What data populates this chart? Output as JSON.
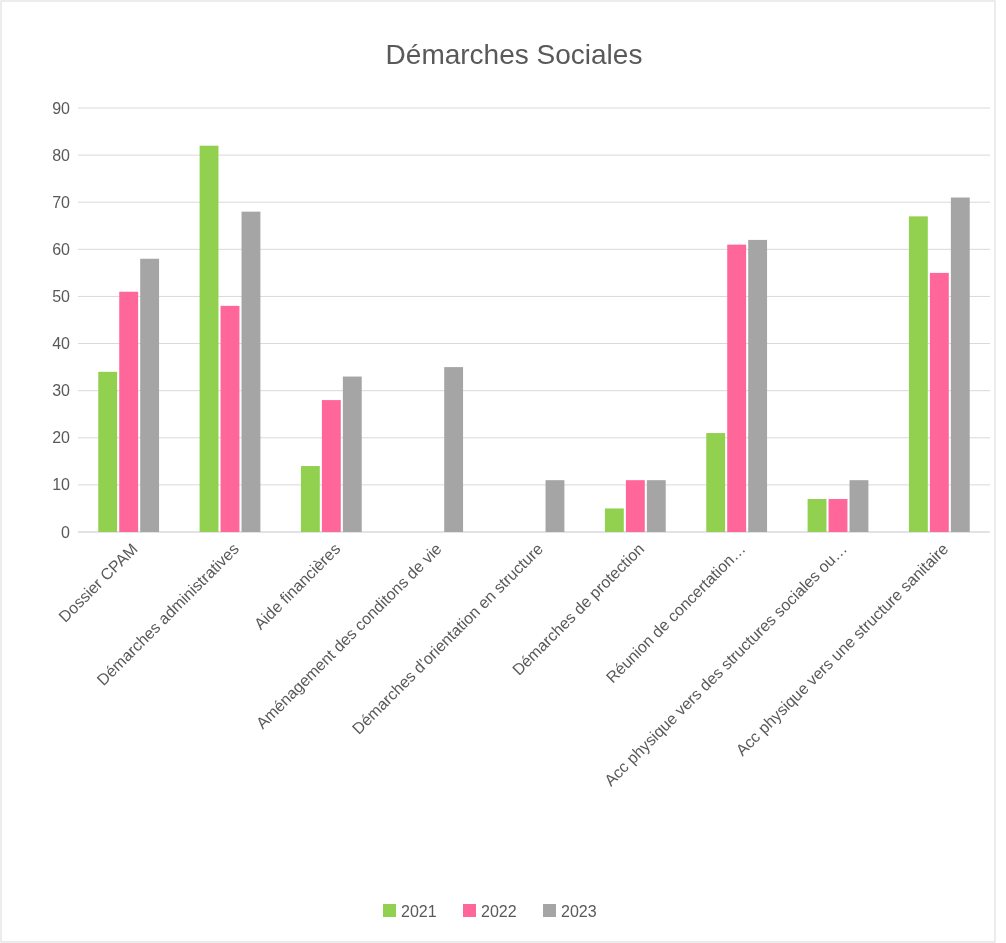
{
  "chart_data": {
    "type": "bar",
    "title": "Démarches Sociales",
    "categories": [
      "Dossier CPAM",
      "Démarches administratives",
      "Aide financières",
      "Aménagement des conditons de vie",
      "Démarches d'orientation en structure",
      "Démarches de protection",
      "Réunion de concertation…",
      "Acc physique vers des structures sociales ou…",
      "Acc physique vers une structure sanitaire"
    ],
    "series": [
      {
        "name": "2021",
        "color": "#92d050",
        "values": [
          34,
          82,
          14,
          null,
          null,
          5,
          21,
          7,
          67
        ]
      },
      {
        "name": "2022",
        "color": "#ff6699",
        "values": [
          51,
          48,
          28,
          null,
          null,
          11,
          61,
          7,
          55
        ]
      },
      {
        "name": "2023",
        "color": "#a5a5a5",
        "values": [
          58,
          68,
          33,
          35,
          11,
          11,
          62,
          11,
          71
        ]
      }
    ],
    "ylim": [
      0,
      90
    ],
    "yticks": [
      0,
      10,
      20,
      30,
      40,
      50,
      60,
      70,
      80,
      90
    ],
    "grid": "y",
    "legend": "bottom"
  }
}
